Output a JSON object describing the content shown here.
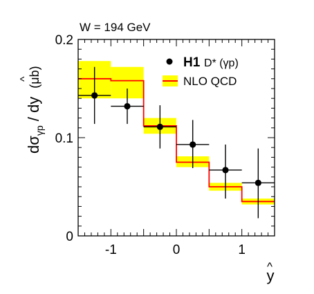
{
  "chart_data": {
    "type": "step_and_points",
    "annotation": "W = 194 GeV",
    "xlabel": "y",
    "xlabel_hat": "^",
    "ylabel": {
      "prefix": "d",
      "sigma": "σ",
      "sub": "γp",
      "slash": " / d",
      "y": "y",
      "hat": "^",
      "unit": "(μb)"
    },
    "xlim": [
      -1.5,
      1.5
    ],
    "ylim": [
      0,
      0.2
    ],
    "x_ticks": [
      "-1",
      "0",
      "1"
    ],
    "x_tick_values": [
      -1,
      0,
      1
    ],
    "y_ticks": [
      "0",
      "0.1",
      "0.2"
    ],
    "y_tick_values": [
      0,
      0.1,
      0.2
    ],
    "legend": {
      "h1_bold": "H1",
      "h1_rest": "D* (γp)",
      "nlo": "NLO QCD"
    },
    "bins": [
      {
        "x_low": -1.5,
        "x_high": -1.0,
        "nlo": 0.16,
        "band_low": 0.14,
        "band_high": 0.178
      },
      {
        "x_low": -1.0,
        "x_high": -0.5,
        "nlo": 0.158,
        "band_low": 0.14,
        "band_high": 0.172
      },
      {
        "x_low": -0.5,
        "x_high": 0.0,
        "nlo": 0.112,
        "band_low": 0.104,
        "band_high": 0.12
      },
      {
        "x_low": 0.0,
        "x_high": 0.5,
        "nlo": 0.075,
        "band_low": 0.07,
        "band_high": 0.081
      },
      {
        "x_low": 0.5,
        "x_high": 1.0,
        "nlo": 0.05,
        "band_low": 0.046,
        "band_high": 0.054
      },
      {
        "x_low": 1.0,
        "x_high": 1.5,
        "nlo": 0.035,
        "band_low": 0.032,
        "band_high": 0.038
      }
    ],
    "h1_points": [
      {
        "x": -1.25,
        "y": 0.143,
        "err_low": 0.029,
        "err_high": 0.029,
        "xerr": 0.25
      },
      {
        "x": -0.75,
        "y": 0.132,
        "err_low": 0.018,
        "err_high": 0.018,
        "xerr": 0.25
      },
      {
        "x": -0.25,
        "y": 0.111,
        "err_low": 0.022,
        "err_high": 0.022,
        "xerr": 0.25
      },
      {
        "x": 0.25,
        "y": 0.093,
        "err_low": 0.024,
        "err_high": 0.025,
        "xerr": 0.25
      },
      {
        "x": 0.75,
        "y": 0.067,
        "err_low": 0.029,
        "err_high": 0.026,
        "xerr": 0.25
      },
      {
        "x": 1.25,
        "y": 0.054,
        "err_low": 0.036,
        "err_high": 0.035,
        "xerr": 0.25
      }
    ],
    "colors": {
      "band": "#ffff00",
      "nlo_line": "#ff0000",
      "points": "#000000",
      "axes": "#000000"
    }
  }
}
